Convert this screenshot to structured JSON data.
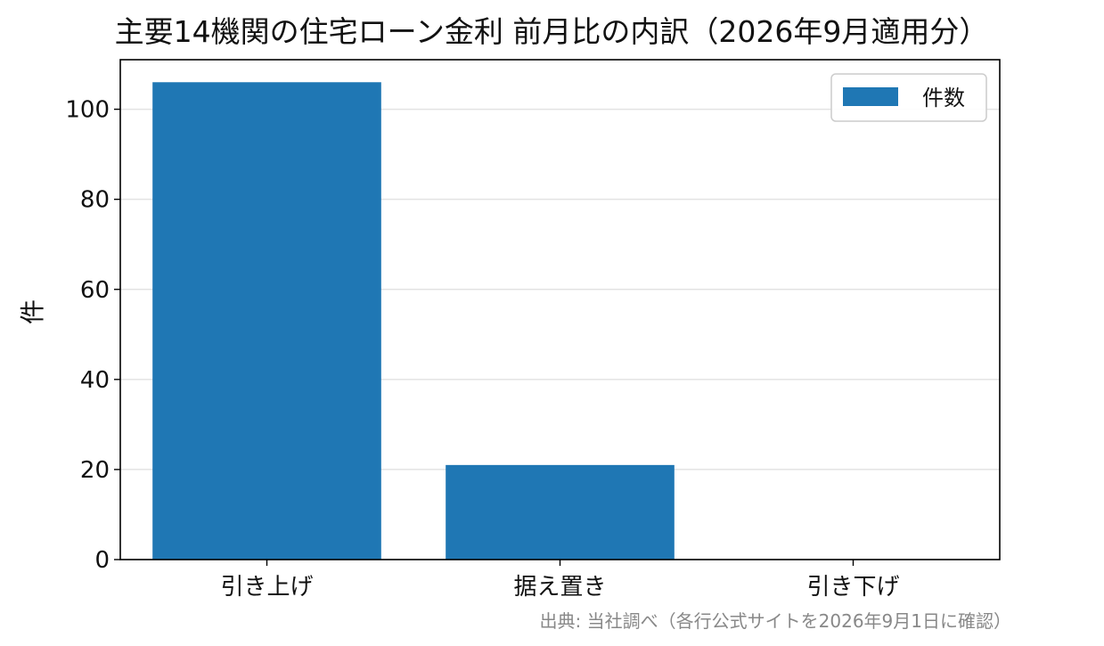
{
  "chart_data": {
    "type": "bar",
    "title": "主要14機関の住宅ローン金利 前月比の内訳（2026年9月適用分）",
    "categories": [
      "引き上げ",
      "据え置き",
      "引き下げ"
    ],
    "series": [
      {
        "name": "件数",
        "values": [
          106,
          21,
          0
        ]
      }
    ],
    "xlabel": "",
    "ylabel": "件",
    "ylim": [
      0,
      111
    ],
    "yticks": [
      0,
      20,
      40,
      60,
      80,
      100
    ],
    "grid": "y",
    "legend": "top-right",
    "bar_color": "#1f77b4",
    "source": "出典: 当社調べ（各行公式サイトを2026年9月1日に確認）"
  }
}
